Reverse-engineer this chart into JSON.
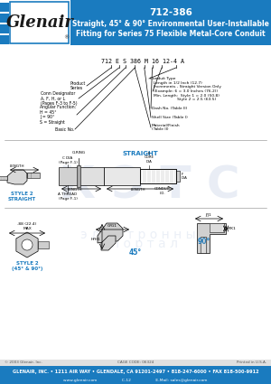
{
  "title_part": "712-386",
  "title_line1": "Straight, 45° & 90° Environmental User-Installable",
  "title_line2": "Fitting for Series 75 Flexible Metal-Core Conduit",
  "header_bg": "#1a7bbf",
  "header_text_color": "#ffffff",
  "body_bg": "#ffffff",
  "footer_bg": "#1a7bbf",
  "footer_text": "GLENAIR, INC. • 1211 AIR WAY • GLENDALE, CA 91201-2497 • 818-247-6000 • FAX 818-500-9912",
  "footer_line2": "www.glenair.com                    C-12                    E-Mail: sales@glenair.com",
  "copyright_text": "© 2003 Glenair, Inc.",
  "cage_code": "CAGE CODE: 06324",
  "printed": "Printed in U.S.A.",
  "pn_string": "712 E S 386 M 16 12-4 A",
  "accent_color": "#1a7bbf",
  "label_color": "#1a7bbf",
  "watermark_color": "#c8d4e8",
  "page_bg": "#ffffff",
  "left_callouts": [
    [
      "Product\nSeries",
      0
    ],
    [
      "Conn Designator\nA, F, H, or L\n(Pages F-3 to F-5)",
      1
    ],
    [
      "Angular Function:\nH = 45°\nJ = 90°\nS = Straight",
      2
    ],
    [
      "Basic No.",
      3
    ]
  ],
  "right_callouts": [
    [
      "Conduit Type",
      8
    ],
    [
      "Length in 1/2 Inch (12.7)\nIncrements - Straight Version Only\n(Example: 6 = 3.0 Inches (76.2))\nMin. Length:  Style 1 = 2.0 (50.8)\n                   Style 2 = 2.5 (63.5)",
      7
    ],
    [
      "Dash No. (Table II)",
      6
    ],
    [
      "Shell Size (Table I)",
      5
    ],
    [
      "Material/Finish\n(Table II)",
      4
    ]
  ]
}
